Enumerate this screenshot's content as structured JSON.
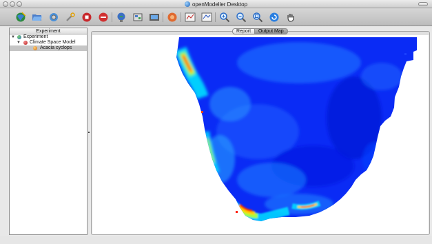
{
  "window": {
    "title": "openModeller Desktop"
  },
  "toolbar": {
    "buttons": [
      {
        "name": "wizard",
        "icon": "globe-wizard-icon"
      },
      {
        "name": "open",
        "icon": "folder-open-icon"
      },
      {
        "name": "algorithm",
        "icon": "globe-gear-icon"
      },
      {
        "name": "tools",
        "icon": "wrench-icon"
      },
      {
        "name": "stop",
        "icon": "stop-icon"
      },
      {
        "name": "delete",
        "icon": "delete-icon"
      },
      {
        "name": "project",
        "icon": "globe-bulb-icon"
      },
      {
        "name": "layers",
        "icon": "layers-icon"
      },
      {
        "name": "save-image",
        "icon": "image-icon"
      },
      {
        "name": "model",
        "icon": "model-icon"
      },
      {
        "name": "chart",
        "icon": "chart-icon"
      },
      {
        "name": "chart-alt",
        "icon": "chart-alt-icon"
      },
      {
        "name": "zoom-in",
        "icon": "zoom-in-icon"
      },
      {
        "name": "zoom-out",
        "icon": "zoom-out-icon"
      },
      {
        "name": "zoom-full",
        "icon": "zoom-full-icon"
      },
      {
        "name": "refresh",
        "icon": "refresh-icon"
      },
      {
        "name": "pan",
        "icon": "pan-hand-icon"
      }
    ]
  },
  "tree": {
    "header": "Experiment",
    "items": [
      {
        "label": "Experiment",
        "icon": "experiment-icon",
        "level": 0,
        "expanded": true,
        "selected": false
      },
      {
        "label": "Climate Space Model",
        "icon": "model-icon",
        "level": 1,
        "expanded": true,
        "selected": false
      },
      {
        "label": "Acacia cyclops",
        "icon": "species-icon",
        "level": 2,
        "expanded": false,
        "selected": true
      }
    ]
  },
  "tabs": [
    {
      "label": "Report",
      "active": false
    },
    {
      "label": "Output Map",
      "active": true
    }
  ],
  "colors": {
    "map_high": "#ff0000",
    "map_mid": "#ffff00",
    "map_low": "#0020ff",
    "selection": "#c5c5c5"
  }
}
